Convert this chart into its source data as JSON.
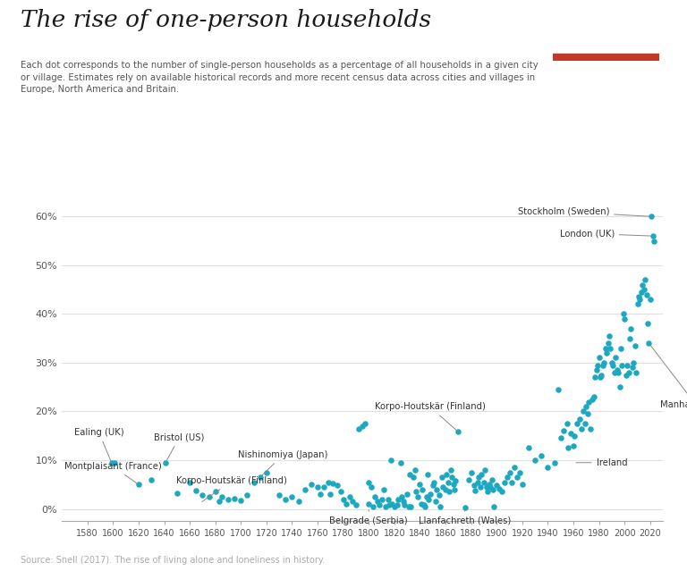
{
  "title": "The rise of one-person households",
  "subtitle_line1": "Each dot corresponds to the number of single-person households as a percentage of all households in a given city",
  "subtitle_line2": "or village. Estimates rely on available historical records and more recent census data across cities and villages in",
  "subtitle_line3": "Europe, North America and Britain.",
  "source": "Source: Snell (2017). The rise of living alone and loneliness in history.",
  "dot_color": "#1da8c2",
  "background_color": "#ffffff",
  "xlim": [
    1560,
    2030
  ],
  "ylim": [
    -0.025,
    0.67
  ],
  "xticks": [
    1580,
    1600,
    1620,
    1640,
    1660,
    1680,
    1700,
    1720,
    1740,
    1760,
    1780,
    1800,
    1820,
    1840,
    1860,
    1880,
    1900,
    1920,
    1940,
    1960,
    1980,
    2000,
    2020
  ],
  "yticks": [
    0.0,
    0.1,
    0.2,
    0.3,
    0.4,
    0.5,
    0.6
  ],
  "data_points": [
    [
      1599,
      0.094
    ],
    [
      1601,
      0.095
    ],
    [
      1620,
      0.05
    ],
    [
      1630,
      0.06
    ],
    [
      1641,
      0.095
    ],
    [
      1650,
      0.032
    ],
    [
      1660,
      0.055
    ],
    [
      1665,
      0.038
    ],
    [
      1670,
      0.028
    ],
    [
      1675,
      0.025
    ],
    [
      1680,
      0.035
    ],
    [
      1683,
      0.015
    ],
    [
      1685,
      0.025
    ],
    [
      1690,
      0.02
    ],
    [
      1695,
      0.022
    ],
    [
      1700,
      0.018
    ],
    [
      1705,
      0.028
    ],
    [
      1710,
      0.055
    ],
    [
      1715,
      0.065
    ],
    [
      1720,
      0.075
    ],
    [
      1730,
      0.028
    ],
    [
      1735,
      0.02
    ],
    [
      1740,
      0.025
    ],
    [
      1745,
      0.015
    ],
    [
      1750,
      0.04
    ],
    [
      1755,
      0.05
    ],
    [
      1760,
      0.045
    ],
    [
      1762,
      0.03
    ],
    [
      1765,
      0.045
    ],
    [
      1768,
      0.055
    ],
    [
      1770,
      0.03
    ],
    [
      1772,
      0.052
    ],
    [
      1775,
      0.048
    ],
    [
      1778,
      0.035
    ],
    [
      1780,
      0.02
    ],
    [
      1782,
      0.01
    ],
    [
      1785,
      0.025
    ],
    [
      1787,
      0.015
    ],
    [
      1790,
      0.008
    ],
    [
      1792,
      0.165
    ],
    [
      1795,
      0.17
    ],
    [
      1797,
      0.175
    ],
    [
      1800,
      0.01
    ],
    [
      1800,
      0.055
    ],
    [
      1802,
      0.045
    ],
    [
      1803,
      0.005
    ],
    [
      1805,
      0.025
    ],
    [
      1807,
      0.015
    ],
    [
      1808,
      0.008
    ],
    [
      1810,
      0.02
    ],
    [
      1812,
      0.04
    ],
    [
      1813,
      0.005
    ],
    [
      1815,
      0.02
    ],
    [
      1816,
      0.008
    ],
    [
      1817,
      0.1
    ],
    [
      1818,
      0.01
    ],
    [
      1820,
      0.005
    ],
    [
      1822,
      0.008
    ],
    [
      1823,
      0.02
    ],
    [
      1825,
      0.095
    ],
    [
      1826,
      0.025
    ],
    [
      1827,
      0.015
    ],
    [
      1828,
      0.008
    ],
    [
      1830,
      0.03
    ],
    [
      1831,
      0.005
    ],
    [
      1832,
      0.07
    ],
    [
      1833,
      0.005
    ],
    [
      1835,
      0.065
    ],
    [
      1836,
      0.08
    ],
    [
      1837,
      0.035
    ],
    [
      1838,
      0.025
    ],
    [
      1840,
      0.05
    ],
    [
      1841,
      0.01
    ],
    [
      1842,
      0.04
    ],
    [
      1843,
      0.008
    ],
    [
      1844,
      0.005
    ],
    [
      1845,
      0.025
    ],
    [
      1846,
      0.07
    ],
    [
      1847,
      0.02
    ],
    [
      1848,
      0.03
    ],
    [
      1850,
      0.048
    ],
    [
      1851,
      0.055
    ],
    [
      1852,
      0.015
    ],
    [
      1853,
      0.04
    ],
    [
      1855,
      0.028
    ],
    [
      1856,
      0.005
    ],
    [
      1857,
      0.065
    ],
    [
      1858,
      0.045
    ],
    [
      1860,
      0.04
    ],
    [
      1861,
      0.07
    ],
    [
      1862,
      0.055
    ],
    [
      1863,
      0.035
    ],
    [
      1864,
      0.08
    ],
    [
      1865,
      0.065
    ],
    [
      1866,
      0.05
    ],
    [
      1867,
      0.04
    ],
    [
      1868,
      0.058
    ],
    [
      1870,
      0.158
    ],
    [
      1875,
      0.002
    ],
    [
      1878,
      0.06
    ],
    [
      1880,
      0.075
    ],
    [
      1882,
      0.048
    ],
    [
      1883,
      0.038
    ],
    [
      1885,
      0.055
    ],
    [
      1886,
      0.065
    ],
    [
      1887,
      0.045
    ],
    [
      1888,
      0.07
    ],
    [
      1890,
      0.055
    ],
    [
      1891,
      0.08
    ],
    [
      1892,
      0.045
    ],
    [
      1893,
      0.035
    ],
    [
      1894,
      0.05
    ],
    [
      1895,
      0.045
    ],
    [
      1896,
      0.06
    ],
    [
      1897,
      0.04
    ],
    [
      1898,
      0.005
    ],
    [
      1900,
      0.048
    ],
    [
      1902,
      0.042
    ],
    [
      1904,
      0.035
    ],
    [
      1906,
      0.055
    ],
    [
      1908,
      0.065
    ],
    [
      1910,
      0.075
    ],
    [
      1912,
      0.055
    ],
    [
      1914,
      0.085
    ],
    [
      1916,
      0.065
    ],
    [
      1918,
      0.075
    ],
    [
      1920,
      0.05
    ],
    [
      1925,
      0.125
    ],
    [
      1930,
      0.1
    ],
    [
      1935,
      0.11
    ],
    [
      1940,
      0.085
    ],
    [
      1945,
      0.095
    ],
    [
      1948,
      0.245
    ],
    [
      1950,
      0.145
    ],
    [
      1952,
      0.16
    ],
    [
      1955,
      0.175
    ],
    [
      1956,
      0.125
    ],
    [
      1958,
      0.155
    ],
    [
      1960,
      0.13
    ],
    [
      1961,
      0.15
    ],
    [
      1963,
      0.175
    ],
    [
      1965,
      0.185
    ],
    [
      1966,
      0.165
    ],
    [
      1968,
      0.2
    ],
    [
      1969,
      0.175
    ],
    [
      1970,
      0.21
    ],
    [
      1971,
      0.195
    ],
    [
      1972,
      0.22
    ],
    [
      1973,
      0.165
    ],
    [
      1975,
      0.225
    ],
    [
      1976,
      0.23
    ],
    [
      1977,
      0.27
    ],
    [
      1978,
      0.285
    ],
    [
      1979,
      0.295
    ],
    [
      1980,
      0.31
    ],
    [
      1981,
      0.27
    ],
    [
      1982,
      0.275
    ],
    [
      1983,
      0.295
    ],
    [
      1984,
      0.3
    ],
    [
      1985,
      0.33
    ],
    [
      1986,
      0.32
    ],
    [
      1987,
      0.34
    ],
    [
      1988,
      0.355
    ],
    [
      1989,
      0.33
    ],
    [
      1990,
      0.3
    ],
    [
      1991,
      0.295
    ],
    [
      1992,
      0.28
    ],
    [
      1993,
      0.31
    ],
    [
      1994,
      0.285
    ],
    [
      1995,
      0.28
    ],
    [
      1996,
      0.25
    ],
    [
      1997,
      0.33
    ],
    [
      1998,
      0.295
    ],
    [
      1999,
      0.4
    ],
    [
      2000,
      0.39
    ],
    [
      2001,
      0.275
    ],
    [
      2002,
      0.295
    ],
    [
      2003,
      0.28
    ],
    [
      2004,
      0.35
    ],
    [
      2005,
      0.37
    ],
    [
      2006,
      0.29
    ],
    [
      2007,
      0.3
    ],
    [
      2008,
      0.335
    ],
    [
      2009,
      0.28
    ],
    [
      2010,
      0.42
    ],
    [
      2011,
      0.435
    ],
    [
      2012,
      0.43
    ],
    [
      2013,
      0.445
    ],
    [
      2014,
      0.46
    ],
    [
      2015,
      0.45
    ],
    [
      2016,
      0.47
    ],
    [
      2017,
      0.44
    ],
    [
      2018,
      0.38
    ],
    [
      2019,
      0.34
    ],
    [
      2020,
      0.43
    ],
    [
      2021,
      0.6
    ],
    [
      2022,
      0.56
    ],
    [
      2023,
      0.55
    ]
  ],
  "owid_logo_bg": "#1a3a5c",
  "owid_logo_red": "#c0392b"
}
